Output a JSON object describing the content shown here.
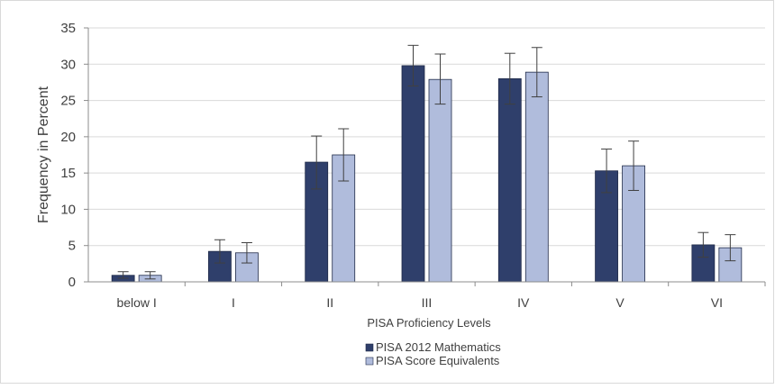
{
  "chart_data": {
    "type": "bar",
    "title": "",
    "xlabel": "PISA Proficiency Levels",
    "ylabel": "Frequency in Percent",
    "ylim": [
      0,
      35
    ],
    "yticks": [
      "0",
      "5",
      "10",
      "15",
      "20",
      "25",
      "30",
      "35"
    ],
    "grid": true,
    "legend_position": "bottom",
    "categories": [
      "below I",
      "I",
      "II",
      "III",
      "IV",
      "V",
      "VI"
    ],
    "series": [
      {
        "name": "PISA 2012 Mathematics",
        "color": "#2f3f6b",
        "values": [
          0.9,
          4.2,
          16.5,
          29.8,
          28.0,
          15.3,
          5.1
        ],
        "error_low": [
          0.5,
          2.6,
          12.8,
          27.0,
          24.5,
          12.3,
          3.4
        ],
        "error_high": [
          1.4,
          5.8,
          20.1,
          32.6,
          31.5,
          18.3,
          6.8
        ]
      },
      {
        "name": "PISA Score Equivalents",
        "color": "#b0bcdc",
        "values": [
          0.9,
          4.0,
          17.5,
          27.9,
          28.9,
          16.0,
          4.7
        ],
        "error_low": [
          0.4,
          2.6,
          13.9,
          24.5,
          25.5,
          12.6,
          2.9
        ],
        "error_high": [
          1.4,
          5.4,
          21.1,
          31.4,
          32.3,
          19.4,
          6.5
        ]
      }
    ]
  }
}
